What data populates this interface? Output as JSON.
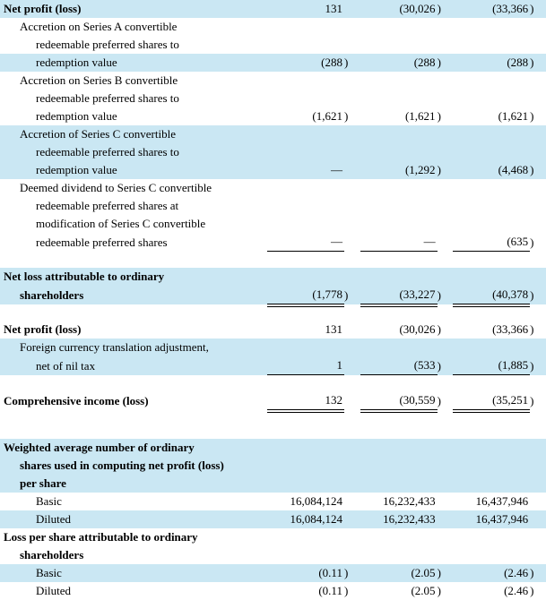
{
  "colors": {
    "shade": "#cae7f3",
    "text": "#000000",
    "background": "#ffffff",
    "line": "#000000"
  },
  "rows": {
    "net_profit_loss_1": {
      "label": "Net profit (loss)",
      "v1": "131",
      "p1": "",
      "v2": "(30,026",
      "p2": ")",
      "v3": "(33,366",
      "p3": ")"
    },
    "accr_a": {
      "l1": "Accretion on Series A convertible",
      "l2": "redeemable preferred shares to",
      "l3": "redemption value",
      "v1": "(288",
      "p1": ")",
      "v2": "(288",
      "p2": ")",
      "v3": "(288",
      "p3": ")"
    },
    "accr_b": {
      "l1": "Accretion on Series B convertible",
      "l2": "redeemable preferred shares to",
      "l3": "redemption value",
      "v1": "(1,621",
      "p1": ")",
      "v2": "(1,621",
      "p2": ")",
      "v3": "(1,621",
      "p3": ")"
    },
    "accr_c": {
      "l1": "Accretion of Series C convertible",
      "l2": "redeemable preferred shares to",
      "l3": "redemption value",
      "v1": "—",
      "p1": "",
      "v2": "(1,292",
      "p2": ")",
      "v3": "(4,468",
      "p3": ")"
    },
    "deemed": {
      "l1": "Deemed dividend to Series C convertible",
      "l2": "redeemable preferred shares at",
      "l3": "modification of Series C convertible",
      "l4": "redeemable preferred shares",
      "v1": "—",
      "p1": "",
      "v2": "—",
      "p2": "",
      "v3": "(635",
      "p3": ")"
    },
    "net_loss_attr": {
      "l1": "Net loss attributable to ordinary",
      "l2": "shareholders",
      "v1": "(1,778",
      "p1": ")",
      "v2": "(33,227",
      "p2": ")",
      "v3": "(40,378",
      "p3": ")"
    },
    "net_profit_loss_2": {
      "label": "Net profit (loss)",
      "v1": "131",
      "p1": "",
      "v2": "(30,026",
      "p2": ")",
      "v3": "(33,366",
      "p3": ")"
    },
    "fx": {
      "l1": "Foreign currency translation adjustment,",
      "l2": "net of nil tax",
      "v1": "1",
      "p1": "",
      "v2": "(533",
      "p2": ")",
      "v3": "(1,885",
      "p3": ")"
    },
    "comp_income": {
      "label": "Comprehensive income (loss)",
      "v1": "132",
      "p1": "",
      "v2": "(30,559",
      "p2": ")",
      "v3": "(35,251",
      "p3": ")"
    },
    "wavg_header": {
      "l1": "Weighted average number of ordinary",
      "l2": "shares used in computing net profit (loss)",
      "l3": "per share"
    },
    "basic_shares": {
      "label": "Basic",
      "v1": "16,084,124",
      "v2": "16,232,433",
      "v3": "16,437,946"
    },
    "diluted_shares": {
      "label": "Diluted",
      "v1": "16,084,124",
      "v2": "16,232,433",
      "v3": "16,437,946"
    },
    "lps_header": {
      "l1": "Loss per share attributable to ordinary",
      "l2": "shareholders"
    },
    "basic_lps": {
      "label": "Basic",
      "v1": "(0.11",
      "p1": ")",
      "v2": "(2.05",
      "p2": ")",
      "v3": "(2.46",
      "p3": ")"
    },
    "diluted_lps": {
      "label": "Diluted",
      "v1": "(0.11",
      "p1": ")",
      "v2": "(2.05",
      "p2": ")",
      "v3": "(2.46",
      "p3": ")"
    }
  }
}
